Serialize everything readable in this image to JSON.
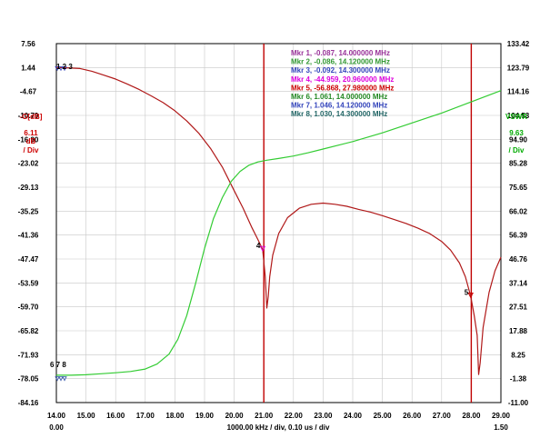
{
  "chart_data": {
    "type": "line",
    "title": "",
    "x_axis": {
      "unit": "MHz",
      "range": [
        14.0,
        29.0
      ],
      "ticks": [
        "14.00",
        "15.00",
        "16.00",
        "17.00",
        "18.00",
        "19.00",
        "20.00",
        "21.00",
        "22.00",
        "23.00",
        "24.00",
        "25.00",
        "26.00",
        "27.00",
        "28.00",
        "29.00"
      ],
      "start_label": "0.00",
      "end_label": "1.50",
      "scale_label": "1000.00 kHz / div, 0.10 us / div"
    },
    "left_axis": {
      "range": [
        -84.16,
        7.56
      ],
      "ticks": [
        "7.56",
        "1.44",
        "-4.67",
        "-10.79",
        "-16.90",
        "-23.02",
        "-29.13",
        "-35.25",
        "-41.36",
        "-47.47",
        "-53.59",
        "-59.70",
        "-65.82",
        "-71.93",
        "-78.05",
        "-84.16"
      ],
      "label_lines": [
        "-G[dB]",
        "6.11",
        "dB",
        "/ Div"
      ],
      "color": "#cc0000"
    },
    "right_axis": {
      "range": [
        -11.0,
        133.42
      ],
      "ticks": [
        "133.42",
        "123.79",
        "114.16",
        "104.53",
        "94.90",
        "85.28",
        "75.65",
        "66.02",
        "56.39",
        "46.76",
        "37.14",
        "27.51",
        "17.88",
        "8.25",
        "-1.38",
        "-11.00"
      ],
      "label_lines": [
        "VSWR",
        "9.63",
        "/ Div"
      ],
      "color": "#00aa00"
    },
    "grid": true,
    "series": [
      {
        "axis": "left",
        "color": "#b01818",
        "x": [
          14.0,
          14.8,
          15.2,
          15.6,
          16.0,
          16.4,
          16.8,
          17.2,
          17.6,
          18.0,
          18.4,
          18.8,
          19.2,
          19.6,
          20.0,
          20.3,
          20.6,
          20.8,
          20.96,
          21.05,
          21.1,
          21.15,
          21.2,
          21.3,
          21.5,
          21.8,
          22.2,
          22.6,
          23.0,
          23.4,
          23.8,
          24.2,
          24.6,
          25.0,
          25.4,
          25.8,
          26.2,
          26.6,
          27.0,
          27.3,
          27.6,
          27.8,
          27.98,
          28.1,
          28.2,
          28.25,
          28.3,
          28.4,
          28.6,
          28.8,
          29.0
        ],
        "y": [
          1.5,
          1.2,
          0.5,
          -0.5,
          -1.5,
          -2.8,
          -4.2,
          -5.8,
          -7.5,
          -9.6,
          -12.2,
          -15.3,
          -19.2,
          -24.0,
          -30.0,
          -34.5,
          -39.5,
          -42.5,
          -45.0,
          -52.0,
          -60.0,
          -57.0,
          -52.0,
          -46.5,
          -41.0,
          -36.9,
          -34.5,
          -33.5,
          -33.2,
          -33.5,
          -34.0,
          -34.8,
          -35.5,
          -36.4,
          -37.4,
          -38.4,
          -39.6,
          -41.0,
          -43.0,
          -45.2,
          -48.5,
          -52.0,
          -56.9,
          -62.0,
          -67.0,
          -77.0,
          -74.0,
          -65.0,
          -56.0,
          -50.5,
          -47.0
        ]
      },
      {
        "axis": "right",
        "color": "#33cc33",
        "x": [
          14.0,
          14.5,
          15.0,
          15.5,
          16.0,
          16.5,
          17.0,
          17.4,
          17.8,
          18.1,
          18.4,
          18.7,
          19.0,
          19.3,
          19.6,
          19.9,
          20.2,
          20.5,
          20.8,
          21.1,
          21.5,
          22.0,
          22.5,
          23.0,
          24.0,
          25.0,
          26.0,
          27.0,
          28.0,
          29.0
        ],
        "y": [
          0.0,
          0.0,
          0.2,
          0.6,
          1.0,
          1.5,
          2.5,
          4.5,
          8.5,
          14.5,
          24.0,
          37.0,
          51.0,
          63.0,
          71.5,
          78.0,
          82.0,
          84.5,
          85.8,
          86.5,
          87.2,
          88.2,
          89.5,
          91.0,
          94.0,
          97.5,
          101.5,
          105.5,
          110.0,
          114.5
        ]
      }
    ],
    "vertical_markers": [
      {
        "x": 21.0,
        "color": "#c00000"
      },
      {
        "x": 28.0,
        "color": "#c00000"
      }
    ],
    "marker_points": [
      {
        "label": "4",
        "x": 20.96,
        "axis": "left",
        "y": -44.959,
        "color": "#dd00dd"
      },
      {
        "label": "5",
        "x": 27.98,
        "axis": "left",
        "y": -56.868,
        "color": "#cc0000"
      }
    ],
    "start_markers": {
      "top_label": "1 2 3",
      "bottom_label": "6 7 8"
    },
    "legend": [
      {
        "text": "Mkr 1, -0.087, 14.000000 MHz",
        "color": "#993399"
      },
      {
        "text": "Mkr 2, -0.086, 14.120000 MHz",
        "color": "#339933"
      },
      {
        "text": "Mkr 3, -0.092, 14.300000 MHz",
        "color": "#3344bb"
      },
      {
        "text": "Mkr 4, -44.959, 20.960000 MHz",
        "color": "#dd00dd"
      },
      {
        "text": "Mkr 5, -56.868, 27.980000 MHz",
        "color": "#cc0000"
      },
      {
        "text": "Mkr 6, 1.061, 14.000000 MHz",
        "color": "#228822"
      },
      {
        "text": "Mkr 7, 1.046, 14.120000 MHz",
        "color": "#3344bb"
      },
      {
        "text": "Mkr 8, 1.030, 14.300000 MHz",
        "color": "#226666"
      }
    ]
  }
}
